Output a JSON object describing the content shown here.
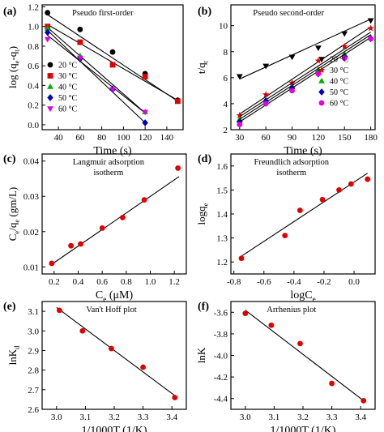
{
  "chart_data": [
    {
      "panel": "(a)",
      "type": "scatter",
      "title": "Pseudo first-order",
      "xlabel": "Time (s)",
      "ylabel_parts": [
        "log (q",
        "e",
        "-q",
        "t",
        ")"
      ],
      "xlim": [
        25,
        155
      ],
      "ylim": [
        -0.05,
        1.22
      ],
      "xticks": [
        20,
        40,
        60,
        80,
        100,
        120,
        140
      ],
      "yticks": [
        0.0,
        0.2,
        0.4,
        0.6,
        0.8,
        1.0,
        1.2
      ],
      "xtick_labels": [
        "20",
        "40",
        "60",
        "80",
        "100",
        "120",
        "140"
      ],
      "ytick_labels": [
        "0.0",
        "0.2",
        "0.4",
        "0.6",
        "0.8",
        "1.0",
        "1.2"
      ],
      "legend": "middle-left",
      "series": [
        {
          "name": "20 °C",
          "marker": "circle",
          "color": "#000000",
          "x": [
            30,
            60,
            90,
            120,
            150
          ],
          "y": [
            1.14,
            0.97,
            0.74,
            0.52,
            0.25
          ],
          "fit": [
            [
              30,
              1.12
            ],
            [
              150,
              0.24
            ]
          ]
        },
        {
          "name": "30 °C",
          "marker": "square",
          "color": "#e00000",
          "x": [
            30,
            60,
            90,
            120,
            150
          ],
          "y": [
            1.0,
            0.84,
            0.61,
            0.49,
            0.24
          ],
          "fit": [
            [
              30,
              1.02
            ],
            [
              150,
              0.25
            ]
          ]
        },
        {
          "name": "40 °C",
          "marker": "triangle-up",
          "color": "#00b000",
          "x": [
            30,
            60,
            90,
            120
          ],
          "y": [
            0.98,
            0.7,
            0.37,
            0.13
          ],
          "fit": [
            [
              30,
              0.99
            ],
            [
              120,
              0.12
            ]
          ]
        },
        {
          "name": "50 °C",
          "marker": "diamond",
          "color": "#0000c0",
          "x": [
            30,
            60,
            90,
            120
          ],
          "y": [
            0.94,
            0.67,
            0.36,
            0.02
          ],
          "fit": [
            [
              30,
              0.96
            ],
            [
              120,
              0.02
            ]
          ]
        },
        {
          "name": "60 °C",
          "marker": "triangle-down",
          "color": "#e000e0",
          "x": [
            30,
            60,
            90,
            120
          ],
          "y": [
            0.87,
            0.68,
            0.36,
            0.13
          ],
          "fit": [
            [
              30,
              0.91
            ],
            [
              120,
              0.12
            ]
          ]
        }
      ]
    },
    {
      "panel": "(b)",
      "type": "scatter",
      "title": "Pseudo second-order",
      "xlabel": "Time (s)",
      "ylabel_parts": [
        "t/q",
        "t"
      ],
      "xlim": [
        20,
        185
      ],
      "ylim": [
        2,
        11.6
      ],
      "xticks": [
        30,
        60,
        90,
        120,
        150,
        180
      ],
      "yticks": [
        2,
        4,
        6,
        8,
        10
      ],
      "xtick_labels": [
        "30",
        "60",
        "90",
        "120",
        "150",
        "180"
      ],
      "ytick_labels": [
        "2",
        "4",
        "6",
        "8",
        "10"
      ],
      "legend": "bottom-right",
      "series": [
        {
          "name": "20 °C",
          "marker": "triangle-down",
          "color": "#000000",
          "x": [
            30,
            60,
            90,
            120,
            150,
            180
          ],
          "y": [
            6.1,
            6.9,
            7.6,
            8.3,
            9.4,
            10.4
          ],
          "fit": [
            [
              30,
              5.9
            ],
            [
              180,
              10.5
            ]
          ]
        },
        {
          "name": "30 °C",
          "marker": "star",
          "color": "#e00000",
          "x": [
            30,
            60,
            90,
            120,
            150,
            180
          ],
          "y": [
            3.1,
            4.7,
            5.6,
            7.3,
            8.4,
            9.8
          ],
          "fit": [
            [
              30,
              3.2
            ],
            [
              180,
              9.9
            ]
          ]
        },
        {
          "name": "40 °C",
          "marker": "triangle-up",
          "color": "#00b000",
          "x": [
            30,
            60,
            90,
            120,
            150,
            180
          ],
          "y": [
            2.8,
            4.3,
            5.3,
            6.6,
            7.8,
            9.1
          ],
          "fit": [
            [
              30,
              3.0
            ],
            [
              180,
              9.5
            ]
          ]
        },
        {
          "name": "50 °C",
          "marker": "diamond",
          "color": "#0000c0",
          "x": [
            30,
            60,
            90,
            120,
            150,
            180
          ],
          "y": [
            2.6,
            4.2,
            5.2,
            6.3,
            7.6,
            9.0
          ],
          "fit": [
            [
              30,
              2.8
            ],
            [
              180,
              9.3
            ]
          ]
        },
        {
          "name": "60 °C",
          "marker": "circle",
          "color": "#e000e0",
          "x": [
            30,
            60,
            90,
            120,
            150,
            180
          ],
          "y": [
            2.4,
            4.0,
            5.0,
            6.3,
            7.5,
            9.0
          ],
          "fit": [
            [
              30,
              2.6
            ],
            [
              180,
              9.1
            ]
          ]
        }
      ]
    },
    {
      "panel": "(c)",
      "type": "scatter",
      "title": "Langmuir adsorption isotherm",
      "title_lines": [
        "Langmuir adsorption",
        "isotherm"
      ],
      "xlabel_parts": [
        "C",
        "e",
        " (μM)"
      ],
      "ylabel_parts": [
        "C",
        "e",
        "/q",
        "e",
        " (gm/L)"
      ],
      "xlim": [
        0.1,
        1.3
      ],
      "ylim": [
        0.008,
        0.042
      ],
      "xticks": [
        0.2,
        0.4,
        0.6,
        0.8,
        1.0,
        1.2
      ],
      "yticks": [
        0.01,
        0.02,
        0.03,
        0.04
      ],
      "xtick_labels": [
        "0.2",
        "0.4",
        "0.6",
        "0.8",
        "1.0",
        "1.2"
      ],
      "ytick_labels": [
        "0.01",
        "0.02",
        "0.03",
        "0.04"
      ],
      "series": [
        {
          "marker": "circle",
          "color": "#e00000",
          "x": [
            0.18,
            0.34,
            0.42,
            0.6,
            0.77,
            0.95,
            1.23
          ],
          "y": [
            0.011,
            0.016,
            0.0165,
            0.021,
            0.024,
            0.029,
            0.038
          ],
          "fit": [
            [
              0.17,
              0.0105
            ],
            [
              1.24,
              0.0356
            ]
          ]
        }
      ]
    },
    {
      "panel": "(d)",
      "type": "scatter",
      "title": "Freundlich adsorption isotherm",
      "title_lines": [
        "Freundlich adsorption",
        "isotherm"
      ],
      "xlabel_parts": [
        "logC",
        "e"
      ],
      "ylabel_parts": [
        "logq",
        "e"
      ],
      "xlim": [
        -0.82,
        0.14
      ],
      "ylim": [
        1.15,
        1.65
      ],
      "xticks": [
        -0.8,
        -0.6,
        -0.4,
        -0.2,
        0.0
      ],
      "yticks": [
        1.2,
        1.3,
        1.4,
        1.5,
        1.6
      ],
      "xtick_labels": [
        "-0.8",
        "-0.6",
        "-0.4",
        "-0.2",
        "0.0"
      ],
      "ytick_labels": [
        "1.2",
        "1.3",
        "1.4",
        "1.5",
        "1.6"
      ],
      "series": [
        {
          "marker": "circle",
          "color": "#e00000",
          "x": [
            -0.75,
            -0.46,
            -0.36,
            -0.21,
            -0.1,
            -0.02,
            0.09
          ],
          "y": [
            1.215,
            1.31,
            1.415,
            1.46,
            1.5,
            1.525,
            1.545
          ],
          "fit": [
            [
              -0.76,
              1.22
            ],
            [
              0.09,
              1.57
            ]
          ]
        }
      ]
    },
    {
      "panel": "(e)",
      "type": "scatter",
      "title": "Van't Hoff plot",
      "xlabel": "1/1000T (1/K)",
      "ylabel_parts": [
        "lnK",
        "d"
      ],
      "xlim": [
        2.95,
        3.45
      ],
      "ylim": [
        2.6,
        3.15
      ],
      "xticks": [
        3.0,
        3.1,
        3.2,
        3.3,
        3.4
      ],
      "yticks": [
        2.6,
        2.7,
        2.8,
        2.9,
        3.0,
        3.1
      ],
      "xtick_labels": [
        "3.0",
        "3.1",
        "3.2",
        "3.3",
        "3.4"
      ],
      "ytick_labels": [
        "2.6",
        "2.7",
        "2.8",
        "2.9",
        "3.0",
        "3.1"
      ],
      "series": [
        {
          "marker": "circle",
          "color": "#e00000",
          "x": [
            3.01,
            3.09,
            3.19,
            3.3,
            3.41
          ],
          "y": [
            3.105,
            3.0,
            2.91,
            2.815,
            2.66
          ],
          "fit": [
            [
              3.0,
              3.12
            ],
            [
              3.41,
              2.67
            ]
          ]
        }
      ]
    },
    {
      "panel": "(f)",
      "type": "scatter",
      "title": "Arrhenius plot",
      "xlabel": "1/1000T (1/K)",
      "ylabel": "lnK",
      "xlim": [
        2.95,
        3.45
      ],
      "ylim": [
        -4.5,
        -3.5
      ],
      "xticks": [
        3.0,
        3.1,
        3.2,
        3.3,
        3.4
      ],
      "yticks": [
        -4.4,
        -4.2,
        -4.0,
        -3.8,
        -3.6
      ],
      "xtick_labels": [
        "3.0",
        "3.1",
        "3.2",
        "3.3",
        "3.4"
      ],
      "ytick_labels": [
        "-4.4",
        "-4.2",
        "-4.0",
        "-3.8",
        "-3.6"
      ],
      "series": [
        {
          "marker": "circle",
          "color": "#e00000",
          "x": [
            3.0,
            3.09,
            3.19,
            3.3,
            3.41
          ],
          "y": [
            -3.61,
            -3.72,
            -3.89,
            -4.26,
            -4.42
          ],
          "fit": [
            [
              3.0,
              -3.58
            ],
            [
              3.41,
              -4.42
            ]
          ]
        }
      ]
    }
  ]
}
